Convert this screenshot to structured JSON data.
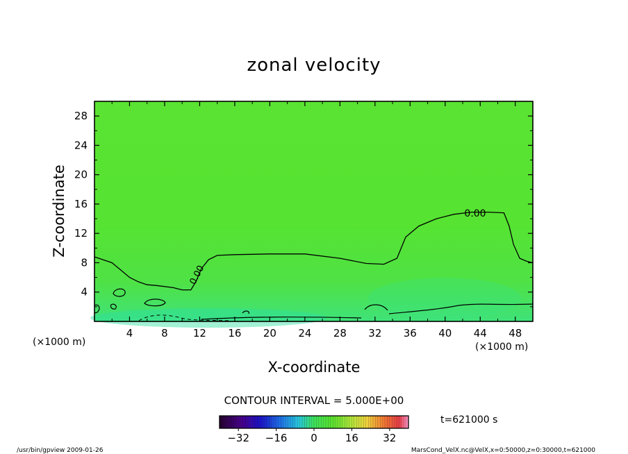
{
  "chart_data": {
    "type": "heatmap",
    "title": "zonal velocity",
    "xlabel": "X-coordinate",
    "ylabel": "Z-coordinate",
    "x_unit_left": "(×1000 m)",
    "x_unit_right": "(×1000 m)",
    "xlim": [
      0,
      50
    ],
    "ylim": [
      0,
      30
    ],
    "x_ticks": [
      4,
      8,
      12,
      16,
      20,
      24,
      28,
      32,
      36,
      40,
      44,
      48
    ],
    "y_ticks": [
      4,
      8,
      12,
      16,
      20,
      24,
      28
    ],
    "x_tick_labels": [
      "4",
      "8",
      "12",
      "16",
      "20",
      "24",
      "28",
      "32",
      "36",
      "40",
      "44",
      "48"
    ],
    "y_tick_labels": [
      "4",
      "8",
      "12",
      "16",
      "20",
      "24",
      "28"
    ],
    "grid": false,
    "contour_interval_text": "CONTOUR INTERVAL = 5.000E+00",
    "contour_labels": [
      "0.00",
      "0.00"
    ],
    "zero_contour": [
      [
        0,
        8.8
      ],
      [
        1,
        8.4
      ],
      [
        2,
        8.0
      ],
      [
        3,
        7.0
      ],
      [
        4,
        6.0
      ],
      [
        5,
        5.4
      ],
      [
        6,
        5.0
      ],
      [
        7,
        4.9
      ],
      [
        9,
        4.6
      ],
      [
        10,
        4.3
      ],
      [
        11,
        4.3
      ],
      [
        11.6,
        5.5
      ],
      [
        12.2,
        7.2
      ],
      [
        13,
        8.4
      ],
      [
        14,
        9.0
      ],
      [
        16,
        9.1
      ],
      [
        20,
        9.2
      ],
      [
        24,
        9.2
      ],
      [
        28,
        8.6
      ],
      [
        31,
        7.9
      ],
      [
        33,
        7.8
      ],
      [
        34.5,
        8.6
      ],
      [
        35.5,
        11.5
      ],
      [
        37,
        13.0
      ],
      [
        39,
        14.0
      ],
      [
        41,
        14.6
      ],
      [
        43,
        14.9
      ],
      [
        45,
        14.9
      ],
      [
        46.7,
        14.8
      ],
      [
        47.3,
        13.0
      ],
      [
        47.8,
        10.5
      ],
      [
        48.5,
        8.6
      ],
      [
        49.3,
        8.2
      ],
      [
        50,
        8.0
      ]
    ],
    "colorbar": {
      "ticks": [
        -32,
        -16,
        0,
        16,
        32
      ],
      "tick_labels": [
        "−32",
        "−16",
        "0",
        "16",
        "32"
      ],
      "range": [
        -40,
        40
      ]
    },
    "time_label": "t=621000 s",
    "footer_left": "/usr/bin/gpview   2009-01-26",
    "footer_right": "MarsCond_VelX.nc@VelX,x=0:50000,z=0:30000,t=621000"
  }
}
